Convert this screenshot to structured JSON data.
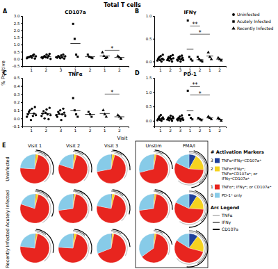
{
  "figure": {
    "title": "Total T cells",
    "y_label": "% Positive",
    "x_label": "Visit"
  },
  "chart_data": [
    {
      "type": "scatter",
      "label": "A",
      "title": "CD107a",
      "categories": [
        "1",
        "2",
        "3",
        "1",
        "2",
        "1",
        "2"
      ],
      "ylim": [
        -0.5,
        3.0
      ],
      "yticks": [
        -0.5,
        {
          "value": 0,
          "label": "0.0"
        },
        0.5,
        {
          "value": 1,
          "label": "1.0"
        },
        1.5,
        {
          "value": 2,
          "label": "2.0"
        },
        2.5,
        {
          "value": 3,
          "label": "3.0"
        }
      ],
      "series": [
        {
          "name": "Uninfected",
          "marker": "circle",
          "color": "#000000",
          "values": [
            [
              0.05,
              0.1,
              0.12,
              0.15,
              0.2,
              0.08,
              0.25,
              0.3,
              0.02,
              0.18
            ],
            [
              0.1,
              0.05,
              0.15,
              0.2,
              0.12,
              0.3,
              0.08,
              0.22,
              0.35,
              0.0
            ],
            [
              0.12,
              0.08,
              0.2,
              0.15,
              0.05,
              0.25,
              0.1,
              0.3,
              0.02,
              0.18
            ],
            null,
            null,
            null,
            null
          ],
          "means": [
            0.15,
            0.15,
            0.15,
            null,
            null,
            null,
            null
          ]
        },
        {
          "name": "Acutely Infected",
          "marker": "square",
          "color": "#000000",
          "values": [
            null,
            null,
            null,
            [
              2.45,
              1.4,
              0.3,
              0.15
            ],
            [
              0.3,
              0.15,
              0.1,
              0.05
            ],
            null,
            null
          ],
          "means": [
            null,
            null,
            null,
            1.08,
            0.15,
            null,
            null
          ]
        },
        {
          "name": "Recently Infected",
          "marker": "triangle",
          "color": "#000000",
          "values": [
            null,
            null,
            null,
            null,
            null,
            [
              0.45,
              0.2,
              0.05,
              0.1
            ],
            [
              0.2,
              0.1,
              0.0
            ]
          ],
          "means": [
            null,
            null,
            null,
            null,
            null,
            0.2,
            0.1
          ]
        }
      ],
      "annotations": [
        {
          "text": "*",
          "from": 5,
          "to": 6,
          "y": 0.6
        }
      ]
    },
    {
      "type": "scatter",
      "label": "B",
      "title": "IFNγ",
      "categories": [
        "1",
        "2",
        "3",
        "1",
        "2",
        "1",
        "2"
      ],
      "ylim": [
        -0.1,
        1.0
      ],
      "yticks": [
        {
          "value": 0,
          "label": "0.0"
        },
        0.5,
        {
          "value": 1,
          "label": "1.0"
        }
      ],
      "series": [
        {
          "marker": "circle",
          "color": "#000000",
          "values": [
            [
              0.02,
              0.05,
              0.08,
              0.1,
              0.03,
              0.12,
              0.0,
              0.06,
              0.15,
              0.04
            ],
            [
              0.03,
              0.06,
              0.1,
              0.02,
              0.08,
              0.12,
              0.05,
              0.0,
              0.14,
              0.07
            ],
            [
              0.04,
              0.02,
              0.09,
              0.06,
              0.11,
              0.0,
              0.05,
              0.13,
              0.08,
              0.03
            ],
            null,
            null,
            null,
            null
          ],
          "means": [
            0.07,
            0.07,
            0.06,
            null,
            null,
            null,
            null
          ]
        },
        {
          "marker": "square",
          "color": "#000000",
          "values": [
            null,
            null,
            null,
            [
              0.9,
              0.1,
              0.05,
              0.02
            ],
            [
              0.1,
              0.05,
              0.02,
              0.0
            ],
            null,
            null
          ],
          "means": [
            null,
            null,
            null,
            0.27,
            0.04,
            null,
            null
          ]
        },
        {
          "marker": "triangle",
          "color": "#000000",
          "values": [
            null,
            null,
            null,
            null,
            null,
            [
              0.2,
              0.1,
              0.05
            ],
            [
              0.08,
              0.05,
              0.02
            ]
          ],
          "means": [
            null,
            null,
            null,
            null,
            null,
            0.12,
            0.05
          ]
        }
      ],
      "annotations": [
        {
          "text": "**",
          "from": 3,
          "to": 4,
          "y": 0.78
        },
        {
          "text": "*",
          "from": 3,
          "to": 5,
          "y": 0.6
        }
      ]
    },
    {
      "type": "scatter",
      "label": "C",
      "title": "TNFα",
      "categories": [
        "1",
        "2",
        "3",
        "1",
        "2",
        "1",
        "2"
      ],
      "ylim": [
        -0.1,
        0.5
      ],
      "yticks": [
        -0.1,
        {
          "value": 0,
          "label": "0.0"
        },
        0.1,
        0.2,
        0.3,
        0.4,
        0.5
      ],
      "series": [
        {
          "marker": "circle",
          "color": "#000000",
          "values": [
            [
              0.02,
              0.05,
              0.08,
              0.1,
              -0.02,
              0.12,
              0.03,
              0.06,
              0.14,
              0.04
            ],
            [
              0.03,
              0.06,
              0.09,
              0.0,
              0.07,
              0.11,
              0.05,
              -0.01,
              0.13,
              0.04
            ],
            [
              0.04,
              0.02,
              0.08,
              0.06,
              0.1,
              -0.02,
              0.05,
              0.12,
              0.07,
              0.03
            ],
            null,
            null,
            null,
            null
          ],
          "means": [
            0.06,
            0.06,
            0.05,
            null,
            null,
            null,
            null
          ]
        },
        {
          "marker": "square",
          "color": "#000000",
          "values": [
            null,
            null,
            null,
            [
              0.25,
              0.1,
              0.05,
              0.02
            ],
            [
              0.08,
              0.05,
              0.02
            ],
            null,
            null
          ],
          "means": [
            null,
            null,
            null,
            0.1,
            0.05,
            null,
            null
          ]
        },
        {
          "marker": "triangle",
          "color": "#000000",
          "values": [
            null,
            null,
            null,
            null,
            null,
            [
              0.1,
              0.05,
              0.02
            ],
            [
              0.04,
              0.02,
              0.0
            ]
          ],
          "means": [
            null,
            null,
            null,
            null,
            null,
            0.06,
            0.02
          ]
        }
      ],
      "annotations": [
        {
          "text": "*",
          "from": 5,
          "to": 6,
          "y": 0.3
        }
      ]
    },
    {
      "type": "scatter",
      "label": "D",
      "title": "PD-1",
      "categories": [
        "1",
        "2",
        "3",
        "1",
        "2",
        "1",
        "2"
      ],
      "ylim": [
        -0.2,
        1.5
      ],
      "yticks": [
        {
          "value": 0,
          "label": "0.0"
        },
        0.5,
        {
          "value": 1,
          "label": "1.0"
        },
        1.5
      ],
      "series": [
        {
          "marker": "circle",
          "color": "#000000",
          "values": [
            [
              0.02,
              0.05,
              0.1,
              0.15,
              0.03,
              0.2,
              0.0,
              0.08,
              0.12,
              0.06
            ],
            [
              0.04,
              0.08,
              0.12,
              0.02,
              0.1,
              0.18,
              0.06,
              0.0,
              0.14,
              0.09
            ],
            [
              0.05,
              0.02,
              0.1,
              0.07,
              0.15,
              0.0,
              0.06,
              0.19,
              0.09,
              0.03
            ],
            null,
            null,
            null,
            null
          ],
          "means": [
            0.08,
            0.08,
            0.08,
            null,
            null,
            null,
            null
          ]
        },
        {
          "marker": "square",
          "color": "#000000",
          "values": [
            null,
            null,
            null,
            [
              1.05,
              0.2,
              0.1,
              0.05
            ],
            [
              0.1,
              0.05,
              0.02
            ],
            null,
            null
          ],
          "means": [
            null,
            null,
            null,
            0.35,
            0.06,
            null,
            null
          ]
        },
        {
          "marker": "triangle",
          "color": "#000000",
          "values": [
            null,
            null,
            null,
            null,
            null,
            [
              0.15,
              0.1,
              0.05
            ],
            [
              0.1,
              0.05,
              0.0
            ]
          ],
          "means": [
            null,
            null,
            null,
            null,
            null,
            0.1,
            0.05
          ]
        }
      ],
      "annotations": [
        {
          "text": "**",
          "from": 3,
          "to": 4,
          "y": 1.2
        },
        {
          "text": "*",
          "from": 3,
          "to": 5,
          "y": 0.9
        }
      ]
    },
    {
      "type": "pie",
      "label": "E",
      "rows": [
        "Uninfected",
        "Acutely Infected",
        "Recently Infected"
      ],
      "columns": [
        "Visit 1",
        "Visit 2",
        "Visit 3",
        "Unstim",
        "PMA/I"
      ],
      "legend_title": "# Activation Markers",
      "series": [
        {
          "name": "3",
          "color": "#1f3f99",
          "label": [
            "TNFα⁺IFNγ⁺CD107a⁺"
          ]
        },
        {
          "name": "2",
          "color": "#f5d21f",
          "label": [
            "TNFα⁺IFNγ⁺;",
            "TNFα⁺CD107a⁺; or",
            "IFNγ⁺CD107a⁺"
          ]
        },
        {
          "name": "1",
          "color": "#e8251f",
          "label": [
            "TNFα⁺; IFNγ⁺; or CD107a⁺"
          ]
        },
        {
          "name": "0",
          "color": "#87cbe8",
          "label": [
            "PD-1⁺ only"
          ]
        }
      ],
      "arc_legend_title": "Arc Legend",
      "arc_series": [
        {
          "name": "TNFα",
          "color": "#c4c4c4"
        },
        {
          "name": "IFNγ",
          "color": "#7a7a7a"
        },
        {
          "name": "CD107a",
          "color": "#000000"
        }
      ],
      "cells": [
        [
          {
            "values": [
              1,
              3,
              72,
              24
            ],
            "arcs": [
              [
                3,
                40
              ],
              [
                0,
                12
              ],
              [
                1,
                30
              ]
            ]
          },
          {
            "values": [
              1,
              3,
              76,
              20
            ],
            "arcs": [
              [
                2,
                38
              ],
              [
                0,
                10
              ],
              [
                1,
                28
              ]
            ]
          },
          {
            "values": [
              1,
              3,
              68,
              28
            ],
            "arcs": [
              [
                3,
                35
              ],
              [
                0,
                11
              ],
              [
                1,
                26
              ]
            ]
          },
          {
            "values": [
              1,
              2,
              68,
              29
            ],
            "arcs": [
              [
                2,
                34
              ],
              [
                0,
                9
              ],
              [
                1,
                25
              ]
            ]
          },
          {
            "values": [
              8,
              18,
              56,
              18
            ],
            "arcs": [
              [
                0,
                62
              ],
              [
                0,
                40
              ],
              [
                4,
                48
              ]
            ]
          }
        ],
        [
          {
            "values": [
              1,
              3,
              76,
              20
            ],
            "arcs": [
              [
                2,
                42
              ],
              [
                0,
                14
              ],
              [
                1,
                32
              ]
            ]
          },
          {
            "values": [
              1,
              2,
              70,
              27
            ],
            "arcs": [
              [
                2,
                36
              ],
              [
                0,
                10
              ],
              [
                1,
                27
              ]
            ]
          },
          {
            "values": [
              1,
              3,
              74,
              22
            ],
            "arcs": [
              [
                3,
                39
              ],
              [
                0,
                12
              ],
              [
                1,
                30
              ]
            ]
          },
          {
            "values": [
              1,
              2,
              70,
              27
            ],
            "arcs": [
              [
                2,
                35
              ],
              [
                0,
                9
              ],
              [
                1,
                26
              ]
            ]
          },
          {
            "values": [
              9,
              17,
              56,
              18
            ],
            "arcs": [
              [
                0,
                60
              ],
              [
                0,
                38
              ],
              [
                5,
                50
              ]
            ]
          }
        ],
        [
          {
            "values": [
              1,
              2,
              74,
              23
            ],
            "arcs": [
              [
                2,
                40
              ],
              [
                0,
                11
              ],
              [
                1,
                29
              ]
            ]
          },
          {
            "values": [
              1,
              3,
              72,
              24
            ],
            "arcs": [
              [
                3,
                38
              ],
              [
                0,
                12
              ],
              [
                1,
                30
              ]
            ]
          },
          {
            "values": [
              1,
              2,
              66,
              31
            ],
            "arcs": [
              [
                2,
                33
              ],
              [
                0,
                10
              ],
              [
                1,
                24
              ]
            ]
          },
          {
            "values": [
              1,
              2,
              62,
              35
            ],
            "arcs": [
              [
                2,
                32
              ],
              [
                0,
                9
              ],
              [
                1,
                22
              ]
            ]
          },
          {
            "values": [
              10,
              19,
              55,
              16
            ],
            "arcs": [
              [
                0,
                64
              ],
              [
                0,
                42
              ],
              [
                6,
                52
              ]
            ]
          }
        ]
      ]
    }
  ]
}
